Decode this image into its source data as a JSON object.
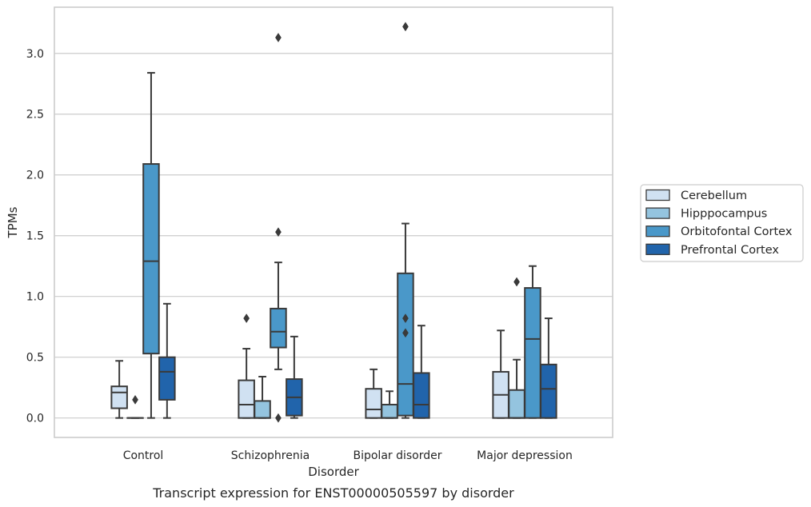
{
  "chart_data": {
    "type": "box",
    "caption": "Transcript expression for ENST00000505597 by disorder",
    "xlabel": "Disorder",
    "ylabel": "TPMs",
    "ylim": [
      -0.16,
      3.38
    ],
    "yticks": [
      0.0,
      0.5,
      1.0,
      1.5,
      2.0,
      2.5,
      3.0
    ],
    "ytick_labels": [
      "0.0",
      "0.5",
      "1.0",
      "1.5",
      "2.0",
      "2.5",
      "3.0"
    ],
    "grid": "horizontal",
    "legend_position": "right",
    "categories": [
      "Control",
      "Schizophrenia",
      "Bipolar disorder",
      "Major depression"
    ],
    "series": [
      {
        "name": "Cerebellum",
        "color": "#d0e1f2",
        "boxes": [
          {
            "whislo": 0.0,
            "q1": 0.08,
            "med": 0.21,
            "q3": 0.26,
            "whishi": 0.47,
            "fliers": []
          },
          {
            "whislo": 0.0,
            "q1": 0.0,
            "med": 0.11,
            "q3": 0.31,
            "whishi": 0.57,
            "fliers": [
              0.82
            ]
          },
          {
            "whislo": 0.0,
            "q1": 0.0,
            "med": 0.07,
            "q3": 0.24,
            "whishi": 0.4,
            "fliers": []
          },
          {
            "whislo": 0.0,
            "q1": 0.0,
            "med": 0.19,
            "q3": 0.38,
            "whishi": 0.72,
            "fliers": []
          }
        ]
      },
      {
        "name": "Hipppocampus",
        "color": "#94c4df",
        "boxes": [
          {
            "whislo": 0.0,
            "q1": 0.0,
            "med": 0.0,
            "q3": 0.0,
            "whishi": 0.0,
            "fliers": [
              0.15
            ]
          },
          {
            "whislo": 0.0,
            "q1": 0.0,
            "med": 0.0,
            "q3": 0.14,
            "whishi": 0.34,
            "fliers": []
          },
          {
            "whislo": 0.0,
            "q1": 0.0,
            "med": 0.0,
            "q3": 0.11,
            "whishi": 0.22,
            "fliers": []
          },
          {
            "whislo": 0.0,
            "q1": 0.0,
            "med": 0.0,
            "q3": 0.23,
            "whishi": 0.48,
            "fliers": [
              1.12
            ]
          }
        ]
      },
      {
        "name": "Orbitofontal Cortex",
        "color": "#4a98c9",
        "boxes": [
          {
            "whislo": 0.0,
            "q1": 0.53,
            "med": 1.29,
            "q3": 2.09,
            "whishi": 2.84,
            "fliers": []
          },
          {
            "whislo": 0.4,
            "q1": 0.58,
            "med": 0.71,
            "q3": 0.9,
            "whishi": 1.28,
            "fliers": [
              0.0,
              1.53,
              3.13
            ]
          },
          {
            "whislo": 0.0,
            "q1": 0.02,
            "med": 0.28,
            "q3": 1.19,
            "whishi": 1.6,
            "fliers": [
              0.7,
              0.82,
              3.22
            ]
          },
          {
            "whislo": 0.0,
            "q1": 0.0,
            "med": 0.65,
            "q3": 1.07,
            "whishi": 1.25,
            "fliers": []
          }
        ]
      },
      {
        "name": "Prefrontal Cortex",
        "color": "#2164ab",
        "boxes": [
          {
            "whislo": 0.0,
            "q1": 0.15,
            "med": 0.38,
            "q3": 0.5,
            "whishi": 0.94,
            "fliers": []
          },
          {
            "whislo": 0.0,
            "q1": 0.02,
            "med": 0.17,
            "q3": 0.32,
            "whishi": 0.67,
            "fliers": []
          },
          {
            "whislo": 0.0,
            "q1": 0.0,
            "med": 0.11,
            "q3": 0.37,
            "whishi": 0.76,
            "fliers": []
          },
          {
            "whislo": 0.0,
            "q1": 0.0,
            "med": 0.24,
            "q3": 0.44,
            "whishi": 0.82,
            "fliers": []
          }
        ]
      }
    ]
  }
}
